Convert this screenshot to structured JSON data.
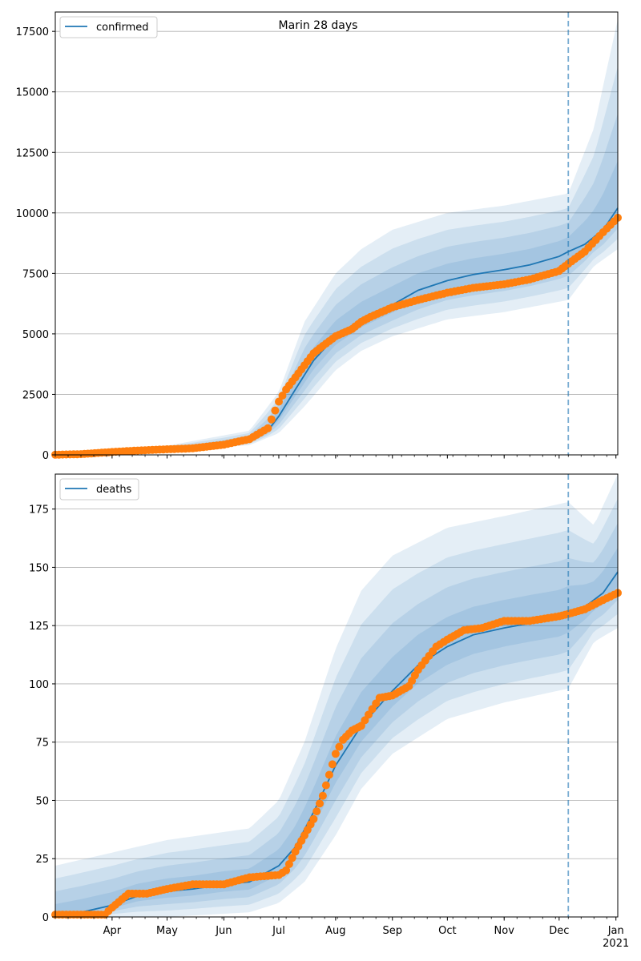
{
  "figure": {
    "title": "Marin 28 days",
    "colors": {
      "model_line": "#1f77b4",
      "observed": "#ff7f0e",
      "band": "#1f77b4",
      "grid": "#b0b0b0",
      "cutoff": "#1f77b4"
    }
  },
  "chart_data": [
    {
      "type": "line",
      "panel": "top",
      "title": "Marin 28 days",
      "legend": [
        "confirmed"
      ],
      "legend_position": "top-left",
      "grid": "horizontal",
      "x_axis": {
        "type": "date",
        "range": [
          "2020-03-01",
          "2021-01-02"
        ],
        "month_ticks": [
          "Apr",
          "May",
          "Jun",
          "Jul",
          "Aug",
          "Sep",
          "Oct",
          "Nov",
          "Dec",
          "Jan"
        ],
        "year_label": "2021"
      },
      "ylim": [
        0,
        18300
      ],
      "yticks": [
        0,
        2500,
        5000,
        7500,
        10000,
        12500,
        15000,
        17500
      ],
      "cutoff_date": "2020-12-06",
      "series": [
        {
          "name": "confirmed",
          "kind": "model",
          "points": [
            [
              "2020-03-01",
              5
            ],
            [
              "2020-03-15",
              40
            ],
            [
              "2020-04-01",
              130
            ],
            [
              "2020-04-15",
              190
            ],
            [
              "2020-05-01",
              240
            ],
            [
              "2020-05-15",
              290
            ],
            [
              "2020-06-01",
              420
            ],
            [
              "2020-06-15",
              620
            ],
            [
              "2020-06-25",
              1000
            ],
            [
              "2020-07-01",
              1600
            ],
            [
              "2020-07-10",
              2700
            ],
            [
              "2020-07-20",
              3900
            ],
            [
              "2020-08-01",
              4900
            ],
            [
              "2020-08-15",
              5600
            ],
            [
              "2020-09-01",
              6200
            ],
            [
              "2020-09-15",
              6800
            ],
            [
              "2020-10-01",
              7200
            ],
            [
              "2020-10-15",
              7450
            ],
            [
              "2020-11-01",
              7650
            ],
            [
              "2020-11-15",
              7850
            ],
            [
              "2020-12-01",
              8200
            ],
            [
              "2020-12-06",
              8400
            ],
            [
              "2020-12-15",
              8700
            ],
            [
              "2020-12-25",
              9300
            ],
            [
              "2021-01-02",
              10200
            ]
          ]
        },
        {
          "name": "observed",
          "kind": "scatter",
          "points": [
            [
              "2020-03-01",
              5
            ],
            [
              "2020-03-15",
              30
            ],
            [
              "2020-04-01",
              120
            ],
            [
              "2020-04-15",
              180
            ],
            [
              "2020-05-01",
              230
            ],
            [
              "2020-05-15",
              270
            ],
            [
              "2020-06-01",
              420
            ],
            [
              "2020-06-15",
              650
            ],
            [
              "2020-06-25",
              1100
            ],
            [
              "2020-07-01",
              2200
            ],
            [
              "2020-07-05",
              2700
            ],
            [
              "2020-07-10",
              3200
            ],
            [
              "2020-07-15",
              3700
            ],
            [
              "2020-07-20",
              4200
            ],
            [
              "2020-07-25",
              4500
            ],
            [
              "2020-08-01",
              4900
            ],
            [
              "2020-08-10",
              5200
            ],
            [
              "2020-08-15",
              5500
            ],
            [
              "2020-08-20",
              5700
            ],
            [
              "2020-09-01",
              6100
            ],
            [
              "2020-09-15",
              6400
            ],
            [
              "2020-10-01",
              6700
            ],
            [
              "2020-10-15",
              6900
            ],
            [
              "2020-11-01",
              7050
            ],
            [
              "2020-11-15",
              7250
            ],
            [
              "2020-12-01",
              7600
            ],
            [
              "2020-12-06",
              7900
            ],
            [
              "2020-12-15",
              8400
            ],
            [
              "2020-12-25",
              9200
            ],
            [
              "2021-01-02",
              9800
            ]
          ]
        }
      ],
      "bands": {
        "lower": [
          [
            "2020-03-01",
            0
          ],
          [
            "2020-05-01",
            150
          ],
          [
            "2020-06-15",
            400
          ],
          [
            "2020-07-01",
            900
          ],
          [
            "2020-07-15",
            2000
          ],
          [
            "2020-08-01",
            3500
          ],
          [
            "2020-08-15",
            4300
          ],
          [
            "2020-09-01",
            4900
          ],
          [
            "2020-10-01",
            5600
          ],
          [
            "2020-11-01",
            5900
          ],
          [
            "2020-12-06",
            6400
          ],
          [
            "2020-12-20",
            7800
          ],
          [
            "2021-01-02",
            8500
          ]
        ],
        "upper": [
          [
            "2020-03-01",
            20
          ],
          [
            "2020-05-01",
            380
          ],
          [
            "2020-06-15",
            1000
          ],
          [
            "2020-07-01",
            2600
          ],
          [
            "2020-07-15",
            5500
          ],
          [
            "2020-08-01",
            7500
          ],
          [
            "2020-08-15",
            8500
          ],
          [
            "2020-09-01",
            9300
          ],
          [
            "2020-10-01",
            10000
          ],
          [
            "2020-11-01",
            10300
          ],
          [
            "2020-12-06",
            10800
          ],
          [
            "2020-12-20",
            13500
          ],
          [
            "2021-01-02",
            18000
          ]
        ]
      }
    },
    {
      "type": "line",
      "panel": "bottom",
      "legend": [
        "deaths"
      ],
      "legend_position": "top-left",
      "grid": "horizontal",
      "x_axis": {
        "type": "date",
        "range": [
          "2020-03-01",
          "2021-01-02"
        ],
        "month_ticks": [
          "Apr",
          "May",
          "Jun",
          "Jul",
          "Aug",
          "Sep",
          "Oct",
          "Nov",
          "Dec",
          "Jan"
        ],
        "year_label": "2021"
      },
      "ylim": [
        0,
        190
      ],
      "yticks": [
        0,
        25,
        50,
        75,
        100,
        125,
        150,
        175
      ],
      "cutoff_date": "2020-12-06",
      "series": [
        {
          "name": "deaths",
          "kind": "model",
          "points": [
            [
              "2020-03-01",
              0
            ],
            [
              "2020-03-15",
              2
            ],
            [
              "2020-04-01",
              5
            ],
            [
              "2020-04-15",
              9
            ],
            [
              "2020-05-01",
              11
            ],
            [
              "2020-05-15",
              12
            ],
            [
              "2020-06-01",
              14
            ],
            [
              "2020-06-15",
              15
            ],
            [
              "2020-07-01",
              22
            ],
            [
              "2020-07-10",
              30
            ],
            [
              "2020-07-20",
              45
            ],
            [
              "2020-08-01",
              65
            ],
            [
              "2020-08-15",
              82
            ],
            [
              "2020-09-01",
              97
            ],
            [
              "2020-09-15",
              108
            ],
            [
              "2020-10-01",
              116
            ],
            [
              "2020-10-15",
              121
            ],
            [
              "2020-11-01",
              124
            ],
            [
              "2020-11-15",
              126
            ],
            [
              "2020-12-01",
              128
            ],
            [
              "2020-12-06",
              130
            ],
            [
              "2020-12-15",
              133
            ],
            [
              "2020-12-25",
              139
            ],
            [
              "2021-01-02",
              148
            ]
          ]
        },
        {
          "name": "observed",
          "kind": "scatter",
          "points": [
            [
              "2020-03-01",
              1
            ],
            [
              "2020-03-15",
              1
            ],
            [
              "2020-03-28",
              1
            ],
            [
              "2020-04-01",
              4
            ],
            [
              "2020-04-10",
              10
            ],
            [
              "2020-04-20",
              10
            ],
            [
              "2020-05-01",
              12
            ],
            [
              "2020-05-15",
              14
            ],
            [
              "2020-06-01",
              14
            ],
            [
              "2020-06-15",
              17
            ],
            [
              "2020-07-01",
              18
            ],
            [
              "2020-07-05",
              20
            ],
            [
              "2020-07-10",
              28
            ],
            [
              "2020-07-15",
              35
            ],
            [
              "2020-07-20",
              42
            ],
            [
              "2020-07-25",
              52
            ],
            [
              "2020-08-01",
              70
            ],
            [
              "2020-08-05",
              76
            ],
            [
              "2020-08-10",
              80
            ],
            [
              "2020-08-15",
              82
            ],
            [
              "2020-08-25",
              94
            ],
            [
              "2020-09-01",
              95
            ],
            [
              "2020-09-10",
              99
            ],
            [
              "2020-09-15",
              106
            ],
            [
              "2020-09-25",
              116
            ],
            [
              "2020-10-01",
              119
            ],
            [
              "2020-10-10",
              123
            ],
            [
              "2020-10-20",
              124
            ],
            [
              "2020-11-01",
              127
            ],
            [
              "2020-11-15",
              127
            ],
            [
              "2020-12-01",
              129
            ],
            [
              "2020-12-06",
              130
            ],
            [
              "2020-12-15",
              132
            ],
            [
              "2020-12-25",
              136
            ],
            [
              "2021-01-02",
              139
            ]
          ]
        }
      ],
      "bands": {
        "lower": [
          [
            "2020-03-01",
            0
          ],
          [
            "2020-05-01",
            0
          ],
          [
            "2020-06-15",
            2
          ],
          [
            "2020-07-01",
            6
          ],
          [
            "2020-07-15",
            15
          ],
          [
            "2020-08-01",
            35
          ],
          [
            "2020-08-15",
            55
          ],
          [
            "2020-09-01",
            70
          ],
          [
            "2020-10-01",
            85
          ],
          [
            "2020-11-01",
            92
          ],
          [
            "2020-12-06",
            98
          ],
          [
            "2020-12-20",
            118
          ],
          [
            "2021-01-02",
            124
          ]
        ],
        "upper": [
          [
            "2020-03-01",
            22
          ],
          [
            "2020-05-01",
            33
          ],
          [
            "2020-06-15",
            38
          ],
          [
            "2020-07-01",
            50
          ],
          [
            "2020-07-15",
            75
          ],
          [
            "2020-08-01",
            115
          ],
          [
            "2020-08-15",
            140
          ],
          [
            "2020-09-01",
            155
          ],
          [
            "2020-10-01",
            167
          ],
          [
            "2020-11-01",
            172
          ],
          [
            "2020-12-06",
            178
          ],
          [
            "2020-12-20",
            168
          ],
          [
            "2021-01-02",
            190
          ]
        ]
      }
    }
  ]
}
